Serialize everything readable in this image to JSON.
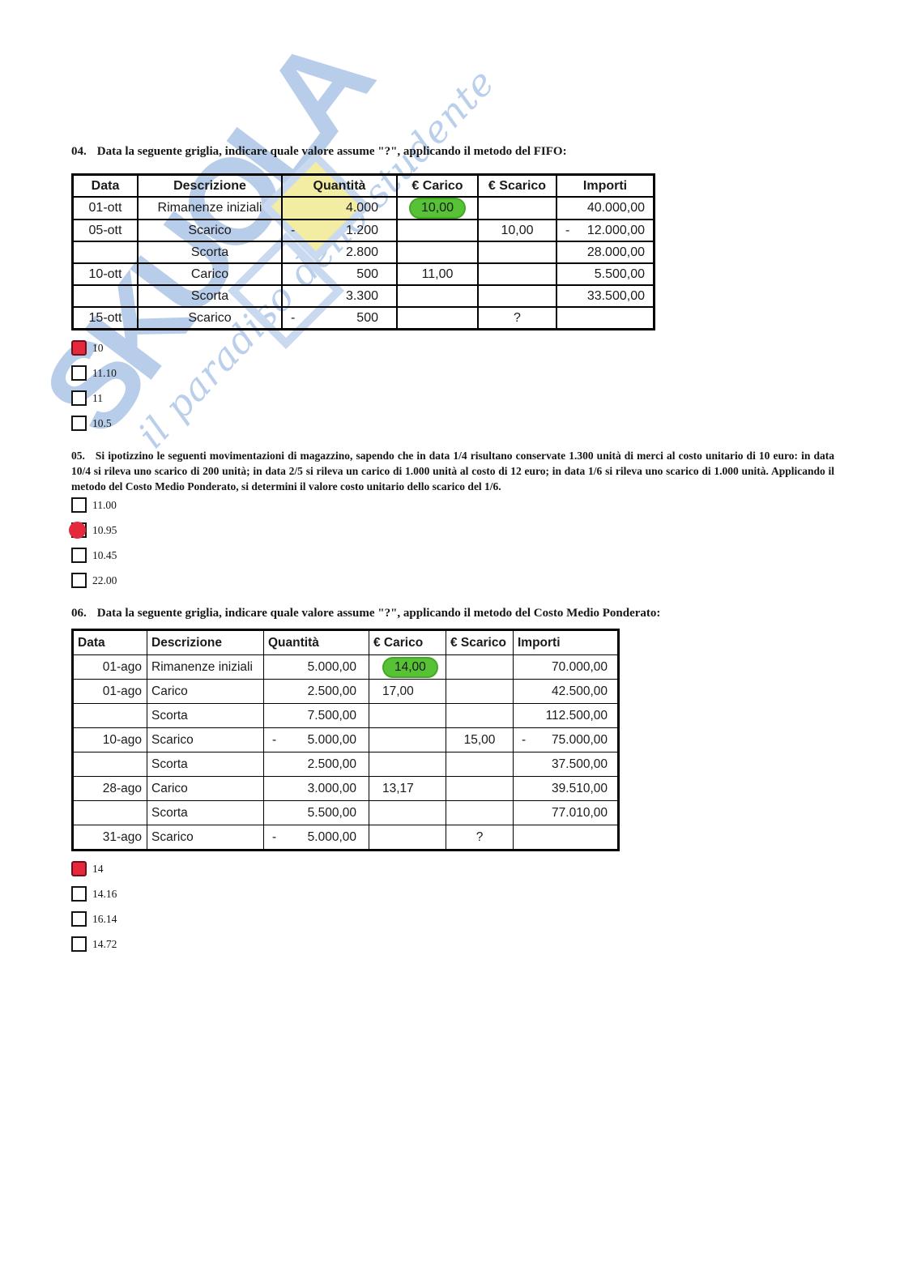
{
  "colors": {
    "highlight_green": "#57c235",
    "selected_red": "#e5293d",
    "watermark_blue": "#b7cdea",
    "watermark_yellow": "#f3eda3"
  },
  "watermark": {
    "brand": "SKUOLA",
    "slogan": "il paradiso dello studente"
  },
  "q04": {
    "number": "04.",
    "text": "Data la seguente griglia, indicare quale valore assume \"?\", applicando il metodo del FIFO:",
    "table": {
      "headers": [
        "Data",
        "Descrizione",
        "Quantità",
        "€ Carico",
        "€ Scarico",
        "Importi"
      ],
      "rows": [
        [
          "01-ott",
          "Rimanenze iniziali",
          {
            "v": "4.000"
          },
          {
            "v": "10,00",
            "hl": true
          },
          "",
          {
            "v": "40.000,00"
          }
        ],
        [
          "05-ott",
          "Scarico",
          {
            "v": "1.200",
            "minus": true
          },
          "",
          "10,00",
          {
            "v": "12.000,00",
            "minus": true
          }
        ],
        [
          "",
          "Scorta",
          {
            "v": "2.800"
          },
          "",
          "",
          {
            "v": "28.000,00"
          }
        ],
        [
          "10-ott",
          "Carico",
          {
            "v": "500"
          },
          "11,00",
          "",
          {
            "v": "5.500,00"
          }
        ],
        [
          "",
          "Scorta",
          {
            "v": "3.300"
          },
          "",
          "",
          {
            "v": "33.500,00"
          }
        ],
        [
          "15-ott",
          "Scarico",
          {
            "v": "500",
            "minus": true
          },
          "",
          "?",
          ""
        ]
      ]
    },
    "options": [
      {
        "label": "10",
        "selected": true
      },
      {
        "label": "11.10",
        "selected": false
      },
      {
        "label": "11",
        "selected": false
      },
      {
        "label": "10.5",
        "selected": false
      }
    ]
  },
  "q05": {
    "number": "05.",
    "text": "Si ipotizzino le seguenti movimentazioni di magazzino, sapendo che in data 1/4 risultano conservate 1.300 unità di merci al costo unitario di 10 euro: in data 10/4 si rileva uno scarico di 200 unità; in data 2/5 si rileva un carico di 1.000 unità al costo di 12 euro; in data 1/6 si rileva uno scarico di 1.000 unità. Applicando il metodo del Costo Medio Ponderato, si determini il valore costo unitario dello scarico del 1/6.",
    "options": [
      {
        "label": "11.00",
        "selected": false
      },
      {
        "label": "10.95",
        "selected": true
      },
      {
        "label": "10.45",
        "selected": false
      },
      {
        "label": "22.00",
        "selected": false
      }
    ]
  },
  "q06": {
    "number": "06.",
    "text": "Data la seguente griglia, indicare quale valore assume \"?\", applicando il metodo del Costo Medio Ponderato:",
    "table": {
      "headers": [
        "Data",
        "Descrizione",
        "Quantità",
        "€ Carico",
        "€ Scarico",
        "Importi"
      ],
      "rows": [
        [
          "01-ago",
          "Rimanenze iniziali",
          {
            "v": "5.000,00"
          },
          {
            "v": "14,00",
            "hl": true
          },
          "",
          {
            "v": "70.000,00"
          }
        ],
        [
          "01-ago",
          "Carico",
          {
            "v": "2.500,00"
          },
          "17,00",
          "",
          {
            "v": "42.500,00"
          }
        ],
        [
          "",
          "Scorta",
          {
            "v": "7.500,00"
          },
          "",
          "",
          {
            "v": "112.500,00"
          }
        ],
        [
          "10-ago",
          "Scarico",
          {
            "v": "5.000,00",
            "minus": true
          },
          "",
          "15,00",
          {
            "v": "75.000,00",
            "minus": true
          }
        ],
        [
          "",
          "Scorta",
          {
            "v": "2.500,00"
          },
          "",
          "",
          {
            "v": "37.500,00"
          }
        ],
        [
          "28-ago",
          "Carico",
          {
            "v": "3.000,00"
          },
          "13,17",
          "",
          {
            "v": "39.510,00"
          }
        ],
        [
          "",
          "Scorta",
          {
            "v": "5.500,00"
          },
          "",
          "",
          {
            "v": "77.010,00"
          }
        ],
        [
          "31-ago",
          "Scarico",
          {
            "v": "5.000,00",
            "minus": true
          },
          "",
          "?",
          ""
        ]
      ]
    },
    "options": [
      {
        "label": "14",
        "selected": true
      },
      {
        "label": "14.16",
        "selected": false
      },
      {
        "label": "16.14",
        "selected": false
      },
      {
        "label": "14.72",
        "selected": false
      }
    ]
  }
}
